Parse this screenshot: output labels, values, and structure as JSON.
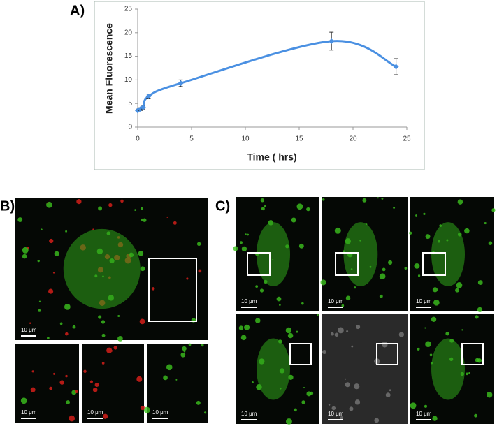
{
  "chart_data": {
    "type": "line",
    "x": [
      0,
      0.25,
      0.5,
      1,
      4,
      18,
      24
    ],
    "values": [
      3.5,
      3.8,
      4.2,
      6.5,
      9.3,
      18.2,
      12.8
    ],
    "errors": [
      0.3,
      0.3,
      0.4,
      0.5,
      0.7,
      1.9,
      1.7
    ],
    "color": "#4a90e2",
    "xlim": [
      0,
      25
    ],
    "xticks": [
      0,
      5,
      10,
      15,
      20,
      25
    ],
    "ylim": [
      0,
      25
    ],
    "yticks": [
      0,
      5,
      10,
      15,
      20,
      25
    ],
    "xlabel": "Time ( hrs)",
    "ylabel": "Mean Fluorescence",
    "grid": false
  },
  "panel_labels": [
    "A)",
    "B)",
    "C)"
  ],
  "scale_bar": "10 μm"
}
